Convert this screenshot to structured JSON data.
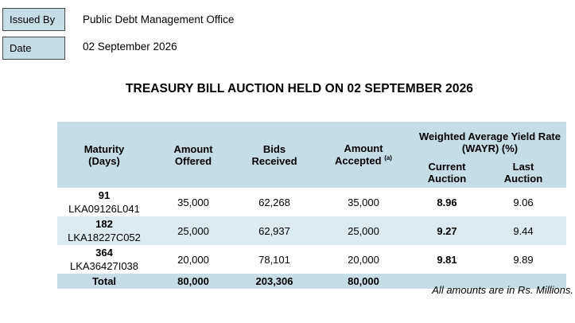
{
  "header": {
    "issued_by_label": "Issued By",
    "issued_by_value": "Public Debt Management Office",
    "date_label": "Date",
    "date_value": "02 September 2026"
  },
  "title": "TREASURY BILL AUCTION HELD ON 02 SEPTEMBER 2026",
  "table": {
    "columns": {
      "maturity": "Maturity",
      "maturity_unit": "(Days)",
      "amount_offered_1": "Amount",
      "amount_offered_2": "Offered",
      "bids_1": "Bids",
      "bids_2": "Received",
      "accepted_1": "Amount",
      "accepted_2": "Accepted",
      "accepted_note": "(a)",
      "wayr_1": "Weighted Average Yield Rate",
      "wayr_2": "(WAYR) (%)",
      "current_1": "Current",
      "current_2": "Auction",
      "last_1": "Last",
      "last_2": "Auction"
    },
    "rows": [
      {
        "days": "91",
        "code": "LKA09126L041",
        "offered": "35,000",
        "bids": "62,268",
        "accepted": "35,000",
        "current": "8.96",
        "last": "9.06"
      },
      {
        "days": "182",
        "code": "LKA18227C052",
        "offered": "25,000",
        "bids": "62,937",
        "accepted": "25,000",
        "current": "9.27",
        "last": "9.44"
      },
      {
        "days": "364",
        "code": "LKA36427I038",
        "offered": "20,000",
        "bids": "78,101",
        "accepted": "20,000",
        "current": "9.81",
        "last": "9.89"
      }
    ],
    "total": {
      "label": "Total",
      "offered": "80,000",
      "bids": "203,306",
      "accepted": "80,000"
    }
  },
  "note": "All amounts are in Rs. Millions.",
  "colors": {
    "header_fill": "#c6dde6",
    "alt_row_fill": "#dcebf1"
  }
}
